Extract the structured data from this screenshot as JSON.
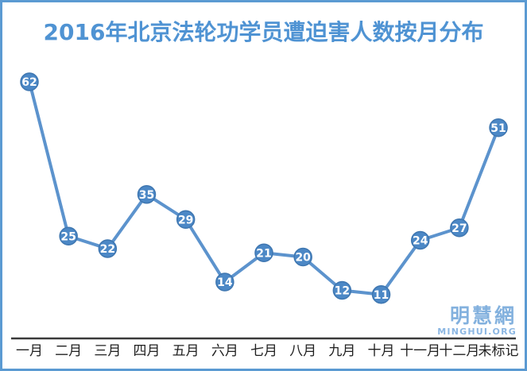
{
  "page": {
    "background_color": "#ffffff",
    "frame_border_color": "#5b9ad2"
  },
  "chart_data": {
    "type": "line",
    "title": "2016年北京法轮功学员遭迫害人数按月分布",
    "title_color": "#4f93d3",
    "categories": [
      "一月",
      "二月",
      "三月",
      "四月",
      "五月",
      "六月",
      "七月",
      "八月",
      "九月",
      "十月",
      "十一月",
      "十二月",
      "未标记"
    ],
    "values": [
      62,
      25,
      22,
      35,
      29,
      14,
      21,
      20,
      12,
      11,
      24,
      27,
      51
    ],
    "xlabel": "",
    "ylabel": "",
    "ylim": [
      0,
      70
    ],
    "grid": false,
    "legend": false,
    "y_axis_shown": false,
    "x_axis_line_shown": true,
    "point_labels_shown": true,
    "line_color": "#5c93cd",
    "marker_color": "#4c88c6",
    "marker_edge_color": "#3e76b0",
    "marker_label_color": "#ffffff",
    "axis_line_color": "#3a3a3a",
    "tick_label_color": "#1f1f1f"
  },
  "watermark": {
    "cjk": "明慧網",
    "latin": "MINGHUI.ORG",
    "cjk_color": "#83b1de",
    "latin_color": "#8cb7e3"
  }
}
